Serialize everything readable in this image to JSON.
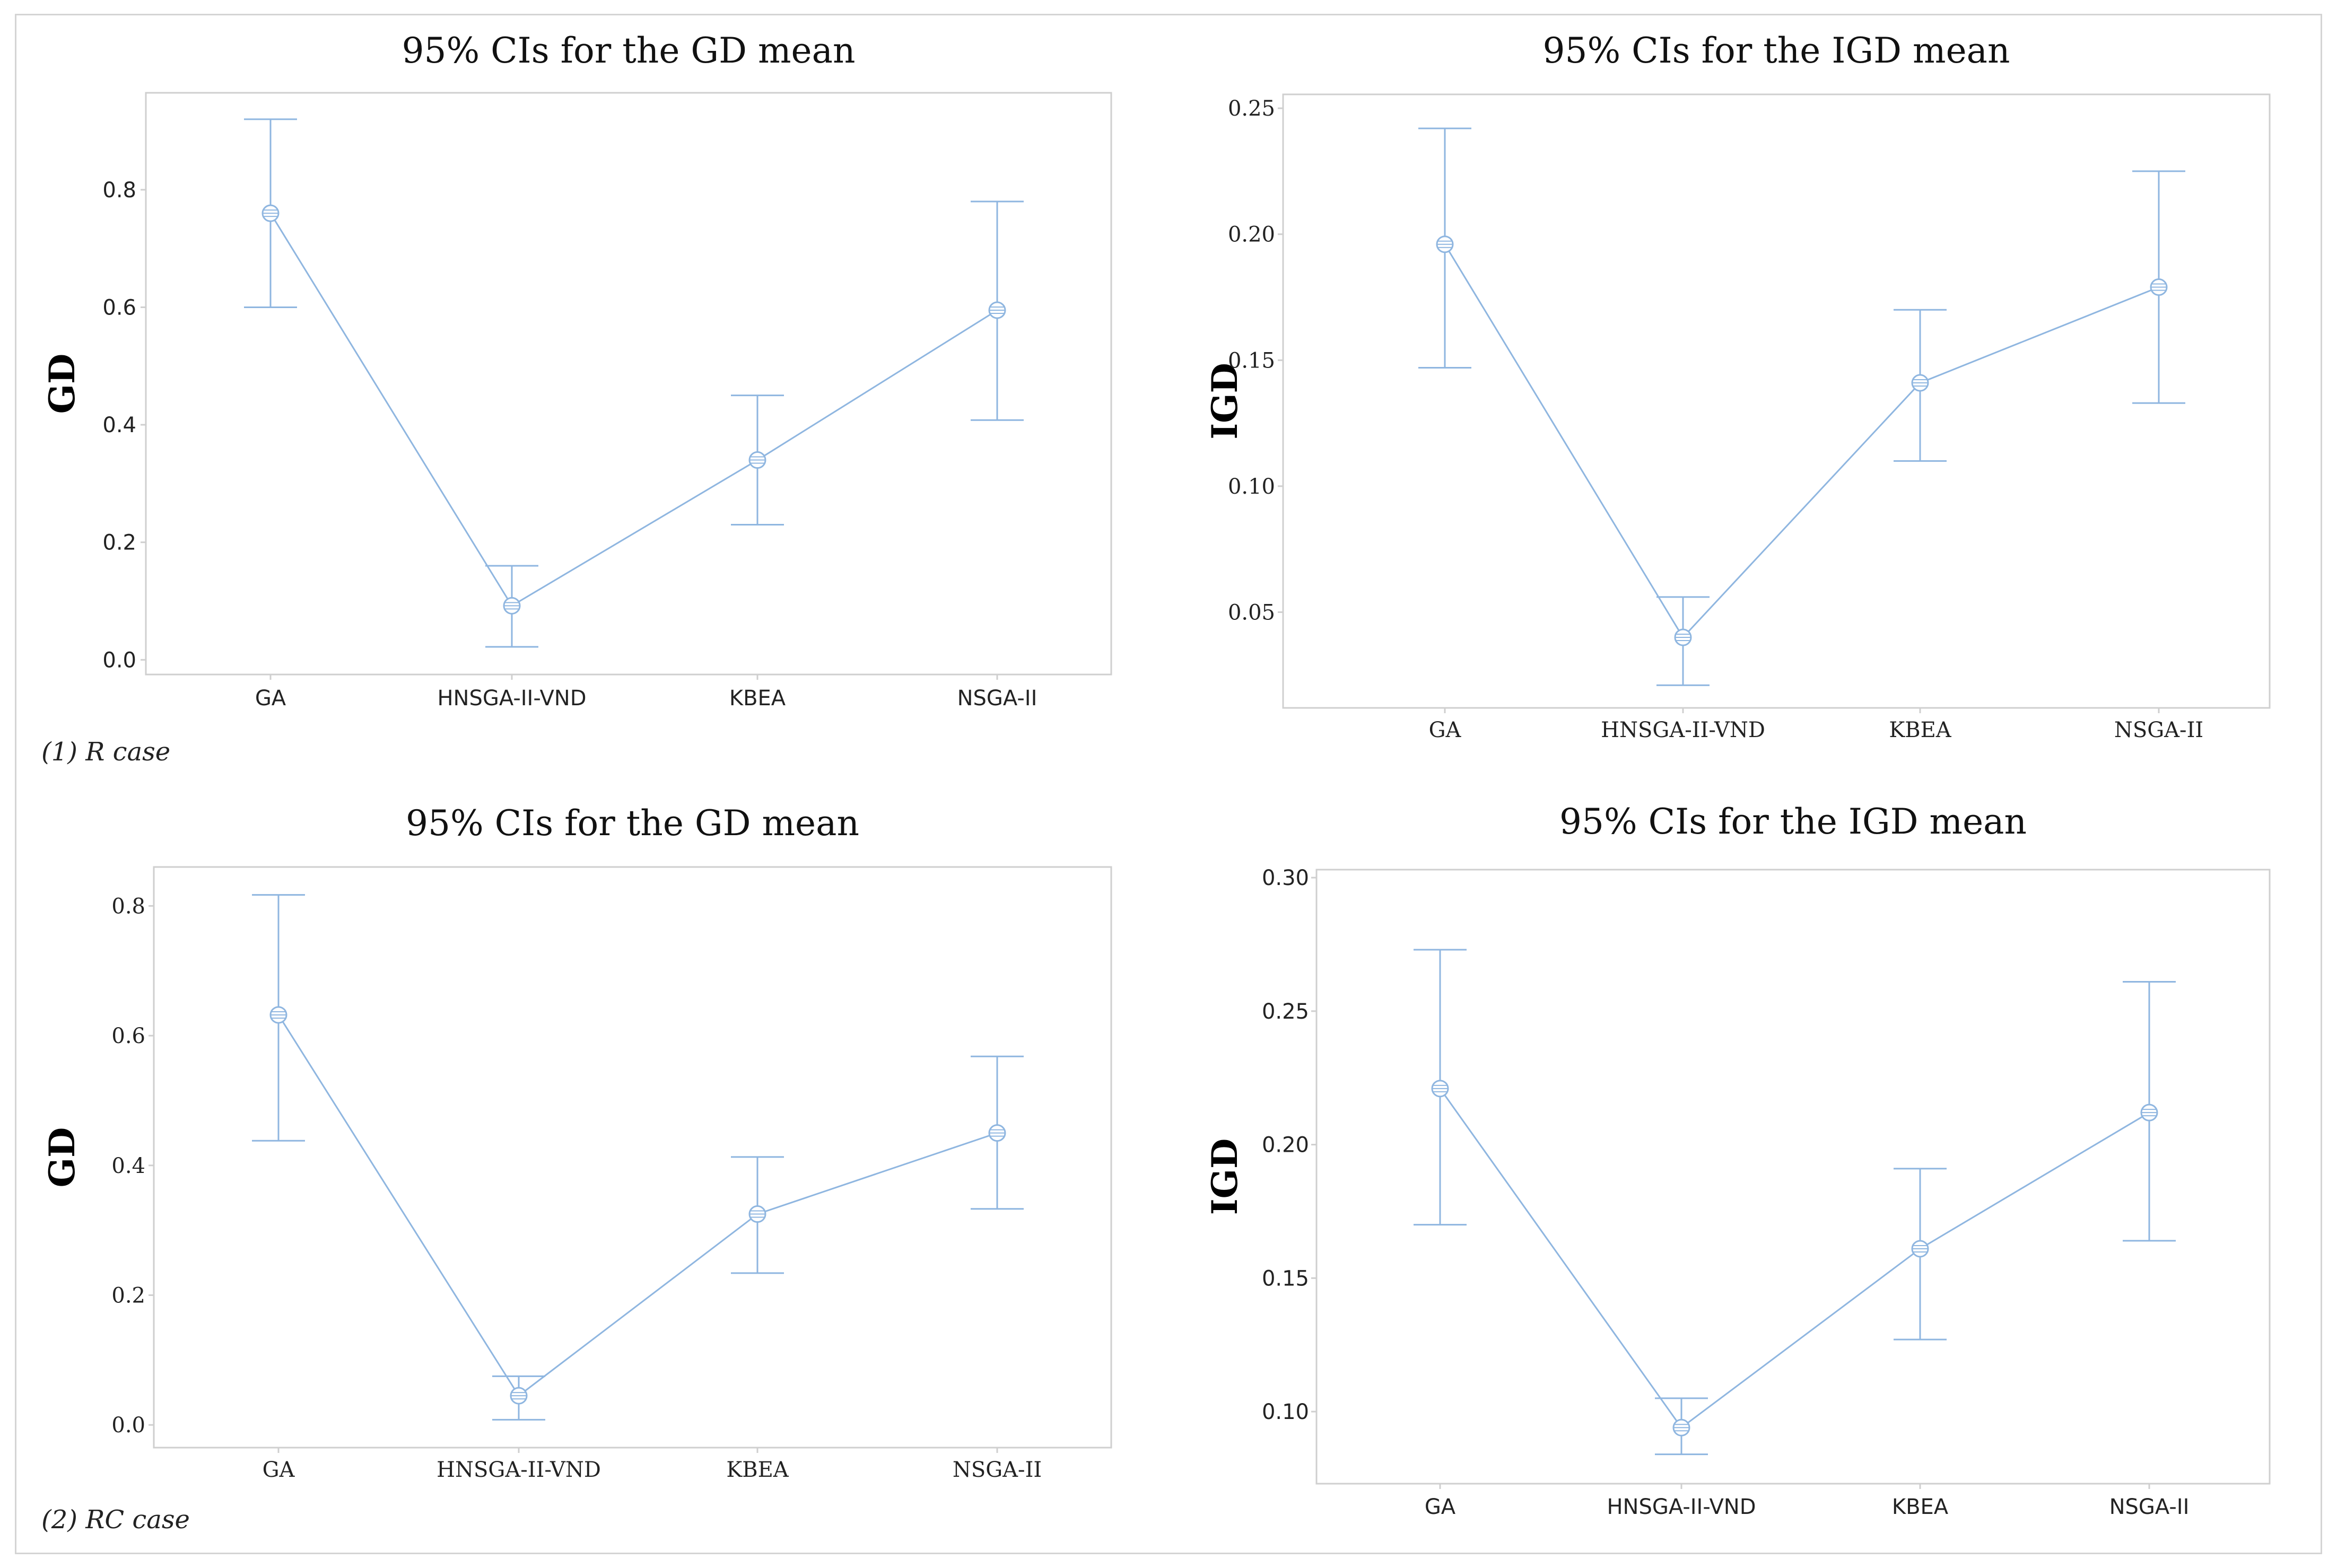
{
  "colors": {
    "series": "#8fb6e0",
    "frame": "#cfcfcf",
    "text": "#222222"
  },
  "captions": [
    "(1) R case",
    "(2) RC case"
  ],
  "chart_data": [
    {
      "type": "interval",
      "title": "95% CIs for the GD mean",
      "xlabel": "",
      "ylabel": "GD",
      "ylim": [
        -0.025,
        0.965
      ],
      "yticks": [
        "0.0",
        "0.2",
        "0.4",
        "0.6",
        "0.8"
      ],
      "categories": [
        "GA",
        "HNSGA-II-VND",
        "KBEA",
        "NSGA-II"
      ],
      "means": [
        0.76,
        0.092,
        0.34,
        0.595
      ],
      "lower": [
        0.6,
        0.022,
        0.23,
        0.408
      ],
      "upper": [
        0.92,
        0.16,
        0.45,
        0.78
      ]
    },
    {
      "type": "interval",
      "title": "95% CIs for the IGD mean",
      "xlabel": "",
      "ylabel": "IGD",
      "ylim": [
        0.012,
        0.2555
      ],
      "yticks": [
        "0.05",
        "0.10",
        "0.15",
        "0.20",
        "0.25"
      ],
      "categories": [
        "GA",
        "HNSGA-II-VND",
        "KBEA",
        "NSGA-II"
      ],
      "means": [
        0.196,
        0.04,
        0.141,
        0.179
      ],
      "lower": [
        0.147,
        0.021,
        0.11,
        0.133
      ],
      "upper": [
        0.242,
        0.056,
        0.17,
        0.225
      ]
    },
    {
      "type": "interval",
      "title": "95% CIs for the GD mean",
      "xlabel": "",
      "ylabel": "GD",
      "ylim": [
        -0.035,
        0.86
      ],
      "yticks": [
        "0.0",
        "0.2",
        "0.4",
        "0.6",
        "0.8"
      ],
      "categories": [
        "GA",
        "HNSGA-II-VND",
        "KBEA",
        "NSGA-II"
      ],
      "means": [
        0.632,
        0.045,
        0.325,
        0.45
      ],
      "lower": [
        0.438,
        0.008,
        0.234,
        0.333
      ],
      "upper": [
        0.817,
        0.075,
        0.413,
        0.568
      ]
    },
    {
      "type": "interval",
      "title": "95% CIs for the IGD mean",
      "xlabel": "",
      "ylabel": "IGD",
      "ylim": [
        0.073,
        0.303
      ],
      "yticks": [
        "0.10",
        "0.15",
        "0.20",
        "0.25",
        "0.30"
      ],
      "categories": [
        "GA",
        "HNSGA-II-VND",
        "KBEA",
        "NSGA-II"
      ],
      "means": [
        0.221,
        0.094,
        0.161,
        0.212
      ],
      "lower": [
        0.17,
        0.084,
        0.127,
        0.164
      ],
      "upper": [
        0.273,
        0.105,
        0.191,
        0.261
      ]
    }
  ]
}
